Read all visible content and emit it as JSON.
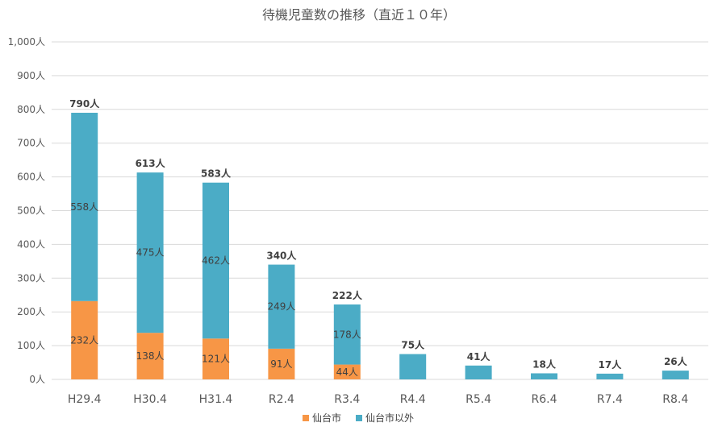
{
  "chart_data": {
    "type": "bar",
    "stacked": true,
    "title": "待機児童数の推移（直近１０年）",
    "categories": [
      "H29.4",
      "H30.4",
      "H31.4",
      "R2.4",
      "R3.4",
      "R4.4",
      "R5.4",
      "R6.4",
      "R7.4",
      "R8.4"
    ],
    "series": [
      {
        "name": "仙台市",
        "color": "#F79646",
        "values": [
          232,
          138,
          121,
          91,
          44,
          0,
          0,
          0,
          0,
          0
        ],
        "labels": [
          "232人",
          "138人",
          "121人",
          "91人",
          "44人",
          "",
          "",
          "",
          "",
          ""
        ]
      },
      {
        "name": "仙台市以外",
        "color": "#4BACC6",
        "values": [
          558,
          475,
          462,
          249,
          178,
          75,
          41,
          18,
          17,
          26
        ],
        "labels": [
          "558人",
          "475人",
          "462人",
          "249人",
          "178人",
          "",
          "",
          "",
          "",
          ""
        ]
      }
    ],
    "totals": [
      790,
      613,
      583,
      340,
      222,
      75,
      41,
      18,
      17,
      26
    ],
    "total_labels": [
      "790人",
      "613人",
      "583人",
      "340人",
      "222人",
      "75人",
      "41人",
      "18人",
      "17人",
      "26人"
    ],
    "ylim": [
      0,
      1000
    ],
    "yticks": [
      0,
      100,
      200,
      300,
      400,
      500,
      600,
      700,
      800,
      900,
      1000
    ],
    "ytick_labels": [
      "0人",
      "100人",
      "200人",
      "300人",
      "400人",
      "500人",
      "600人",
      "700人",
      "800人",
      "900人",
      "1,000人"
    ],
    "grid": true,
    "legend": "bottom",
    "gridline_color": "#D9D9D9"
  }
}
